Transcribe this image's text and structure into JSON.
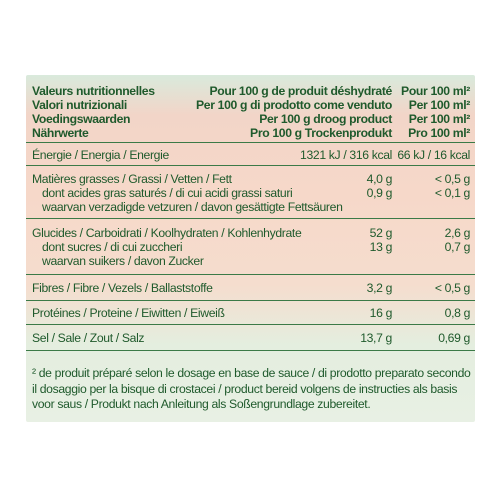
{
  "header": [
    {
      "label": "Valeurs nutritionnelles",
      "per100g": "Pour 100 g de produit déshydraté",
      "per100ml": "Pour 100 ml²"
    },
    {
      "label": "Valori nutrizionali",
      "per100g": "Per 100 g di prodotto come venduto",
      "per100ml": "Per 100 ml²"
    },
    {
      "label": "Voedingswaarden",
      "per100g": "Per 100 g droog product",
      "per100ml": "Per 100 ml²"
    },
    {
      "label": "Nährwerte",
      "per100g": "Pro 100 g Trockenprodukt",
      "per100ml": "Pro 100 ml²"
    }
  ],
  "rows": [
    {
      "label": "Énergie / Energia / Energie",
      "per100g": "1321 kJ / 316 kcal",
      "per100ml": "66 kJ / 16 kcal"
    },
    {
      "label": "Matières grasses / Grassi / Vetten / Fett",
      "per100g": "4,0 g",
      "per100ml": "< 0,5 g"
    },
    {
      "label": "dont acides gras saturés / di cui acidi grassi saturi",
      "per100g": "0,9 g",
      "per100ml": "< 0,1 g"
    },
    {
      "label": "waarvan verzadigde vetzuren / davon gesättigte Fettsäuren",
      "per100g": "",
      "per100ml": ""
    },
    {
      "label": "Glucides / Carboidrati / Koolhydraten / Kohlenhydrate",
      "per100g": "52 g",
      "per100ml": "2,6 g"
    },
    {
      "label": "dont sucres / di cui zuccheri",
      "per100g": "13 g",
      "per100ml": "0,7 g"
    },
    {
      "label": "waarvan suikers / davon Zucker",
      "per100g": "",
      "per100ml": ""
    },
    {
      "label": "Fibres / Fibre / Vezels / Ballaststoffe",
      "per100g": "3,2 g",
      "per100ml": "< 0,5 g"
    },
    {
      "label": "Protéines / Proteine / Eiwitten / Eiweiß",
      "per100g": "16 g",
      "per100ml": "0,8 g"
    },
    {
      "label": "Sel / Sale / Zout / Salz",
      "per100g": "13,7 g",
      "per100ml": "0,69 g"
    }
  ],
  "footnote": "² de produit préparé selon le dosage en base de sauce / di prodotto preparato secondo il dosaggio per la bisque di crostacei / product bereid volgens de instructies als basis voor saus / Produkt nach Anleitung als Soßengrundlage zubereitet."
}
